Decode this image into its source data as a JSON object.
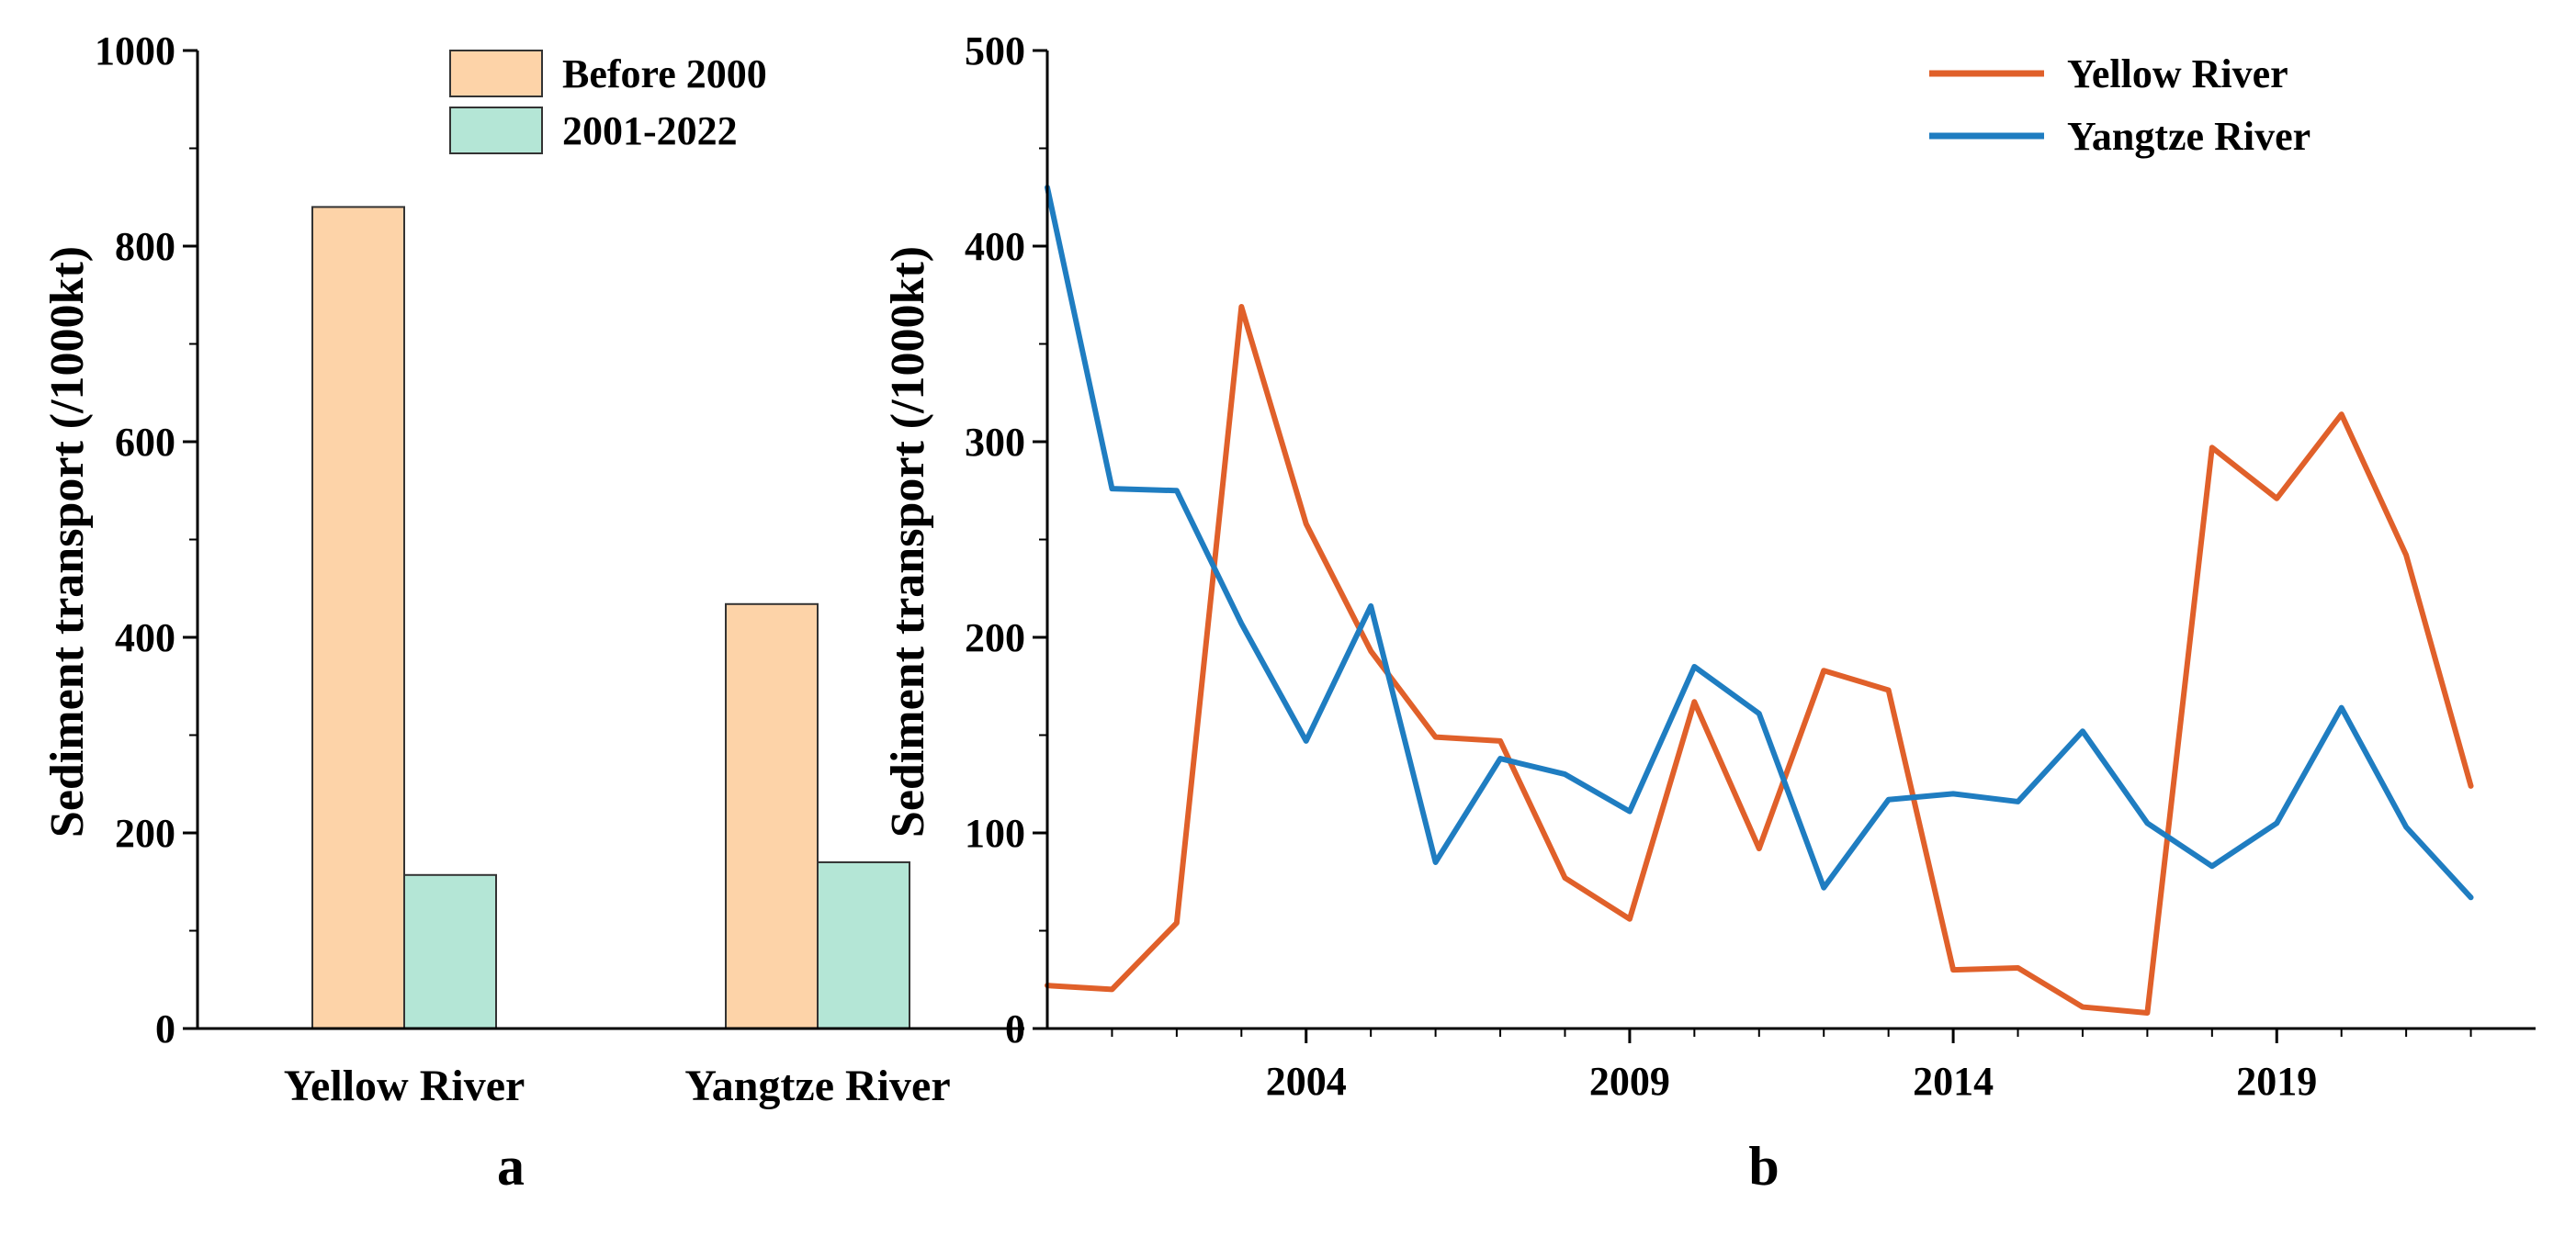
{
  "chart_data": [
    {
      "panel": "a",
      "type": "bar",
      "title": "",
      "xlabel": "",
      "ylabel": "Sediment transport (/1000kt)",
      "ylim": [
        0,
        1000
      ],
      "yticks": [
        0,
        200,
        400,
        600,
        800,
        1000
      ],
      "categories": [
        "Yellow River",
        "Yangtze River"
      ],
      "series": [
        {
          "name": "Before 2000",
          "color": "#FDD3A8",
          "values": [
            840,
            434
          ]
        },
        {
          "name": "2001-2022",
          "color": "#B4E6D6",
          "values": [
            157,
            170
          ]
        }
      ],
      "legend_position": "top-right"
    },
    {
      "panel": "b",
      "type": "line",
      "title": "",
      "xlabel": "",
      "ylabel": "Sediment transport (/1000kt)",
      "xlim": [
        2000,
        2023
      ],
      "ylim": [
        0,
        500
      ],
      "xticks": [
        2004,
        2009,
        2014,
        2019
      ],
      "yticks": [
        0,
        100,
        200,
        300,
        400,
        500
      ],
      "x": [
        2000,
        2001,
        2002,
        2003,
        2004,
        2005,
        2006,
        2007,
        2008,
        2009,
        2010,
        2011,
        2012,
        2013,
        2014,
        2015,
        2016,
        2017,
        2018,
        2019,
        2020,
        2021,
        2022
      ],
      "series": [
        {
          "name": "Yellow River",
          "color": "#E0602A",
          "values": [
            22,
            20,
            54,
            369,
            258,
            193,
            149,
            147,
            77,
            56,
            167,
            92,
            183,
            173,
            30,
            31,
            11,
            8,
            297,
            271,
            314,
            242,
            124
          ]
        },
        {
          "name": "Yangtze River",
          "color": "#1F7DC1",
          "values": [
            430,
            276,
            275,
            207,
            147,
            216,
            85,
            138,
            130,
            111,
            185,
            161,
            72,
            117,
            120,
            116,
            152,
            105,
            83,
            105,
            164,
            103,
            67
          ]
        }
      ],
      "legend_position": "top-right"
    }
  ],
  "panel_labels": {
    "a": "a",
    "b": "b"
  }
}
